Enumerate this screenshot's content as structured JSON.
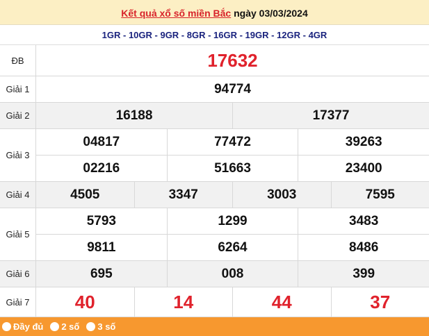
{
  "header": {
    "link": "Kết quả xổ số miền Bắc",
    "date_text": "ngày 03/03/2024"
  },
  "codes": "1GR - 10GR - 9GR - 8GR - 16GR - 19GR - 12GR - 4GR",
  "prizes": [
    {
      "label": "ĐB",
      "lines": [
        [
          "17632"
        ]
      ]
    },
    {
      "label": "Giải 1",
      "lines": [
        [
          "94774"
        ]
      ]
    },
    {
      "label": "Giải 2",
      "lines": [
        [
          "16188",
          "17377"
        ]
      ]
    },
    {
      "label": "Giải 3",
      "lines": [
        [
          "04817",
          "77472",
          "39263"
        ],
        [
          "02216",
          "51663",
          "23400"
        ]
      ]
    },
    {
      "label": "Giải 4",
      "lines": [
        [
          "4505",
          "3347",
          "3003",
          "7595"
        ]
      ]
    },
    {
      "label": "Giải 5",
      "lines": [
        [
          "5793",
          "1299",
          "3483"
        ],
        [
          "9811",
          "6264",
          "8486"
        ]
      ]
    },
    {
      "label": "Giải 6",
      "lines": [
        [
          "695",
          "008",
          "399"
        ]
      ]
    },
    {
      "label": "Giải 7",
      "lines": [
        [
          "40",
          "14",
          "44",
          "37"
        ]
      ]
    }
  ],
  "footer": {
    "options": [
      "Đầy đủ",
      "2 số",
      "3 số"
    ]
  },
  "colors": {
    "accent_red": "#e0222c",
    "header_bg": "#fcefc4",
    "footer_bg": "#f7982f",
    "code_blue": "#1a237e"
  }
}
